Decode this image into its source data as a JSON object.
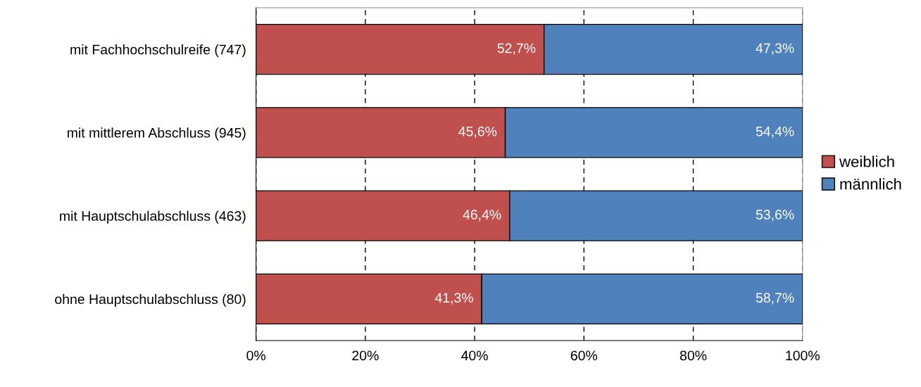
{
  "chart_data": {
    "type": "bar",
    "orientation": "horizontal",
    "stacked": true,
    "categories": [
      "mit Fachhochschulreife (747)",
      "mit mittlerem Abschluss (945)",
      "mit Hauptschulabschluss (463)",
      "ohne Hauptschulabschluss (80)"
    ],
    "series": [
      {
        "name": "weiblich",
        "color": "#c0504d",
        "values": [
          52.7,
          45.6,
          46.4,
          41.3
        ],
        "value_labels": [
          "52,7%",
          "45,6%",
          "46,4%",
          "41,3%"
        ]
      },
      {
        "name": "männlich",
        "color": "#4f81bd",
        "values": [
          47.3,
          54.4,
          53.6,
          58.7
        ],
        "value_labels": [
          "47,3%",
          "54,4%",
          "53,6%",
          "58,7%"
        ]
      }
    ],
    "xlim": [
      0,
      100
    ],
    "xticks": [
      {
        "value": 0,
        "label": "0%"
      },
      {
        "value": 20,
        "label": "20%"
      },
      {
        "value": 40,
        "label": "40%"
      },
      {
        "value": 60,
        "label": "60%"
      },
      {
        "value": 80,
        "label": "80%"
      },
      {
        "value": 100,
        "label": "100%"
      }
    ],
    "grid": "x",
    "line_style": "dashed",
    "legend": "right"
  }
}
